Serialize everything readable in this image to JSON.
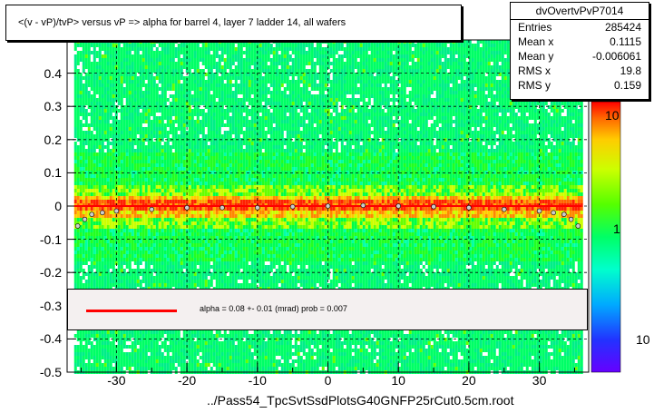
{
  "title": "<(v - vP)/tvP> versus   vP => alpha for barrel 4, layer 7 ladder 14, all wafers",
  "stats": {
    "name": "dvOvertvPvP7014",
    "rows": [
      {
        "label": "Entries",
        "value": "285424"
      },
      {
        "label": "Mean x",
        "value": "0.1115"
      },
      {
        "label": "Mean y",
        "value": "-0.006061"
      },
      {
        "label": "RMS x",
        "value": "19.8"
      },
      {
        "label": "RMS y",
        "value": "0.159"
      }
    ]
  },
  "fit_label": "alpha =     0.08 +-  0.01 (mrad) prob = 0.007",
  "footer": "../Pass54_TpcSvtSsdPlotsG40GNFP25rCut0.5cm.root",
  "colors": {
    "fit_line": "#ff0000",
    "fit_box": "#f4f0f0"
  },
  "chart_data": {
    "type": "heatmap",
    "xlim": [
      -37,
      37
    ],
    "ylim": [
      -0.5,
      0.5
    ],
    "x_ticks": [
      -30,
      -20,
      -10,
      0,
      10,
      20,
      30
    ],
    "x_tick_labels": [
      "-30",
      "-20",
      "-10",
      "0",
      "10",
      "20",
      "30"
    ],
    "y_ticks": [
      -0.5,
      -0.4,
      -0.3,
      -0.2,
      -0.1,
      0,
      0.1,
      0.2,
      0.3,
      0.4
    ],
    "y_tick_labels": [
      "-0.5",
      "-0.4",
      "-0.3",
      "-0.2",
      "-0.1",
      "0",
      "0.1",
      "0.2",
      "0.3",
      "0.4"
    ],
    "grid": true,
    "z_scale": "log",
    "z_tick_labels": [
      "10",
      "1",
      "10"
    ],
    "data_x_range": [
      -36,
      36
    ],
    "profile": {
      "x": [
        -35.5,
        -34.5,
        -33.5,
        -32,
        -30,
        -25,
        -20,
        -15,
        -10,
        -5,
        0,
        5,
        10,
        15,
        20,
        25,
        30,
        32,
        33.5,
        34.5,
        35.5
      ],
      "y": [
        -0.06,
        -0.04,
        -0.025,
        -0.02,
        -0.015,
        -0.01,
        -0.005,
        -0.005,
        -0.005,
        -0.002,
        0.0,
        0.002,
        0.0,
        -0.002,
        -0.005,
        -0.01,
        -0.015,
        -0.02,
        -0.025,
        -0.04,
        -0.06
      ]
    },
    "fit_line": {
      "x": [
        -36,
        36
      ],
      "y": [
        0.0,
        0.0
      ]
    }
  }
}
